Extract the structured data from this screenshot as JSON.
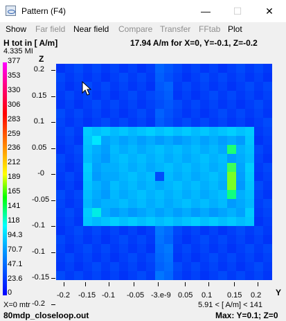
{
  "window": {
    "title": "Pattern    (F4)",
    "minimize_glyph": "—",
    "maximize_glyph": "☐",
    "close_glyph": "✕"
  },
  "menu": {
    "items": [
      "Show",
      "Far field",
      "Near field",
      "Compare",
      "Transfer",
      "FFtab",
      "Plot"
    ],
    "enabled": [
      true,
      false,
      true,
      false,
      false,
      false,
      true
    ]
  },
  "header": {
    "quantity": "H tot in [ A/m]",
    "max_value": "4.335 MI",
    "readout": "17.94  A/m for X=0, Y=-0.1, Z=-0.2"
  },
  "colorbar": {
    "labels": [
      "377",
      "353",
      "330",
      "306",
      "283",
      "259",
      "236",
      "212",
      "189",
      "165",
      "141",
      "118",
      "94.3",
      "70.7",
      "47.1",
      "23.6",
      "0"
    ]
  },
  "axes": {
    "y_letter": "Z",
    "x_letter": "Y",
    "y_ticks": [
      "0.2",
      "0.15",
      "0.1",
      "0.05",
      "-0",
      "-0.05",
      "-0.1",
      "-0.1",
      "-0.15",
      "-0.2"
    ],
    "x_ticks": [
      "-0.2",
      "-0.15",
      "-0.1",
      "-0.05",
      "-3.e-9",
      "0.05",
      "0.1",
      "0.15",
      "0.2"
    ]
  },
  "footer": {
    "plane": "X=0 mtr",
    "range": "5.91 < [ A/m] < 141",
    "filename": "80mdp_closeloop.out",
    "max_location": "Max: Y=0.1; Z=0"
  },
  "colors": {
    "background": "#f0f0f0",
    "plot_base": "#0022f5",
    "near_field_accent": "#00e0ff"
  }
}
